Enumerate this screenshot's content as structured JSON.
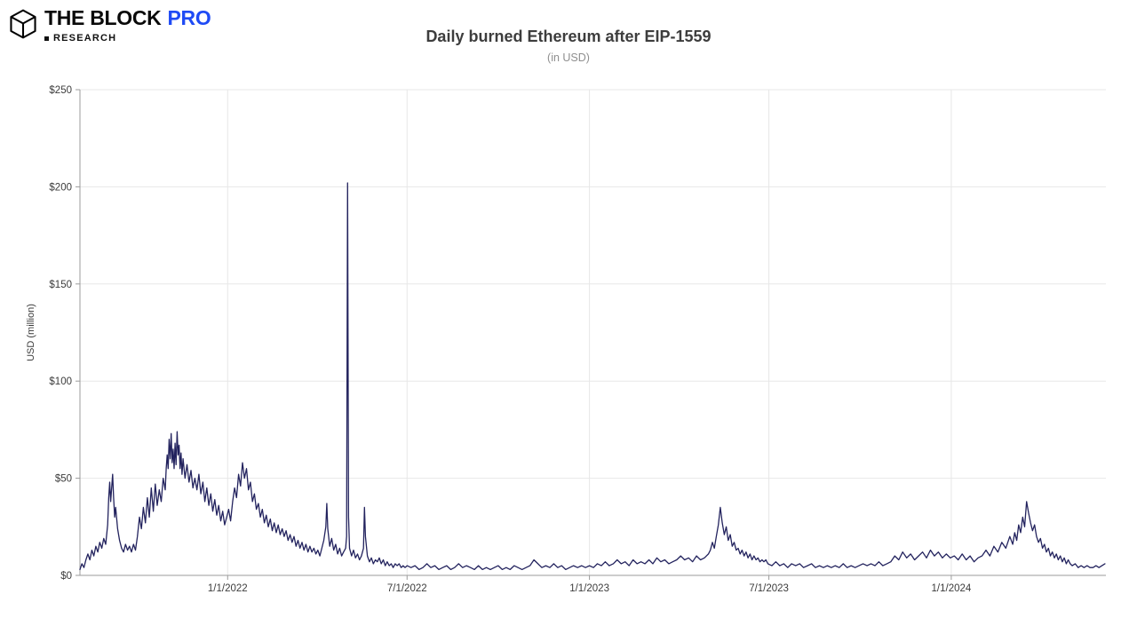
{
  "logo": {
    "brand": "THE BLOCK",
    "pro": "PRO",
    "research": "RESEARCH"
  },
  "header": {
    "title": "Daily burned Ethereum after EIP-1559",
    "subtitle": "(in USD)"
  },
  "chart_data": {
    "type": "line",
    "title": "Daily burned Ethereum after EIP-1559",
    "subtitle": "(in USD)",
    "xlabel": "",
    "ylabel": "USD (million)",
    "ylim": [
      0,
      250
    ],
    "x_domain_days": [
      0,
      1035
    ],
    "grid": true,
    "legend": false,
    "line_color": "#23235e",
    "grid_color": "#e7e7e7",
    "axis_color": "#9b9b9b",
    "text_color": "#3c3c3c",
    "y_ticks": {
      "values": [
        0,
        50,
        100,
        150,
        200,
        250
      ],
      "labels": [
        "$0",
        "$50",
        "$100",
        "$150",
        "$200",
        "$250"
      ]
    },
    "x_ticks": [
      {
        "day": 149,
        "label": "1/1/2022"
      },
      {
        "day": 330,
        "label": "7/1/2022"
      },
      {
        "day": 514,
        "label": "1/1/2023"
      },
      {
        "day": 695,
        "label": "7/1/2023"
      },
      {
        "day": 879,
        "label": "1/1/2024"
      }
    ],
    "points": [
      [
        0,
        3
      ],
      [
        2,
        6
      ],
      [
        4,
        4
      ],
      [
        6,
        8
      ],
      [
        8,
        11
      ],
      [
        10,
        8
      ],
      [
        12,
        13
      ],
      [
        14,
        10
      ],
      [
        16,
        15
      ],
      [
        18,
        12
      ],
      [
        20,
        17
      ],
      [
        22,
        14
      ],
      [
        24,
        19
      ],
      [
        26,
        16
      ],
      [
        28,
        26
      ],
      [
        29,
        40
      ],
      [
        30,
        48
      ],
      [
        31,
        38
      ],
      [
        32,
        45
      ],
      [
        33,
        52
      ],
      [
        34,
        40
      ],
      [
        35,
        30
      ],
      [
        36,
        35
      ],
      [
        38,
        24
      ],
      [
        40,
        18
      ],
      [
        42,
        14
      ],
      [
        44,
        12
      ],
      [
        46,
        16
      ],
      [
        48,
        13
      ],
      [
        50,
        15
      ],
      [
        52,
        12
      ],
      [
        54,
        16
      ],
      [
        56,
        13
      ],
      [
        58,
        20
      ],
      [
        60,
        30
      ],
      [
        62,
        24
      ],
      [
        64,
        35
      ],
      [
        66,
        27
      ],
      [
        68,
        40
      ],
      [
        70,
        30
      ],
      [
        72,
        45
      ],
      [
        74,
        33
      ],
      [
        76,
        47
      ],
      [
        78,
        36
      ],
      [
        80,
        44
      ],
      [
        82,
        38
      ],
      [
        84,
        50
      ],
      [
        86,
        44
      ],
      [
        87,
        55
      ],
      [
        88,
        62
      ],
      [
        89,
        55
      ],
      [
        90,
        70
      ],
      [
        91,
        60
      ],
      [
        92,
        73
      ],
      [
        93,
        58
      ],
      [
        94,
        65
      ],
      [
        95,
        55
      ],
      [
        96,
        68
      ],
      [
        97,
        57
      ],
      [
        98,
        74
      ],
      [
        99,
        62
      ],
      [
        100,
        67
      ],
      [
        101,
        55
      ],
      [
        102,
        63
      ],
      [
        103,
        52
      ],
      [
        104,
        60
      ],
      [
        106,
        50
      ],
      [
        108,
        57
      ],
      [
        110,
        48
      ],
      [
        112,
        54
      ],
      [
        114,
        45
      ],
      [
        116,
        50
      ],
      [
        118,
        44
      ],
      [
        120,
        52
      ],
      [
        122,
        42
      ],
      [
        124,
        48
      ],
      [
        126,
        38
      ],
      [
        128,
        45
      ],
      [
        130,
        36
      ],
      [
        132,
        42
      ],
      [
        134,
        33
      ],
      [
        136,
        39
      ],
      [
        138,
        31
      ],
      [
        140,
        36
      ],
      [
        142,
        28
      ],
      [
        144,
        33
      ],
      [
        146,
        26
      ],
      [
        148,
        30
      ],
      [
        150,
        34
      ],
      [
        152,
        28
      ],
      [
        154,
        38
      ],
      [
        156,
        45
      ],
      [
        158,
        40
      ],
      [
        160,
        52
      ],
      [
        162,
        46
      ],
      [
        164,
        58
      ],
      [
        166,
        50
      ],
      [
        168,
        55
      ],
      [
        170,
        44
      ],
      [
        172,
        48
      ],
      [
        174,
        38
      ],
      [
        176,
        42
      ],
      [
        178,
        34
      ],
      [
        180,
        37
      ],
      [
        182,
        30
      ],
      [
        184,
        34
      ],
      [
        186,
        27
      ],
      [
        188,
        31
      ],
      [
        190,
        25
      ],
      [
        192,
        29
      ],
      [
        194,
        23
      ],
      [
        196,
        27
      ],
      [
        198,
        22
      ],
      [
        200,
        26
      ],
      [
        202,
        21
      ],
      [
        204,
        24
      ],
      [
        206,
        20
      ],
      [
        208,
        23
      ],
      [
        210,
        18
      ],
      [
        212,
        21
      ],
      [
        214,
        17
      ],
      [
        216,
        20
      ],
      [
        218,
        15
      ],
      [
        220,
        18
      ],
      [
        222,
        14
      ],
      [
        224,
        17
      ],
      [
        226,
        13
      ],
      [
        228,
        16
      ],
      [
        230,
        12
      ],
      [
        232,
        15
      ],
      [
        234,
        12
      ],
      [
        236,
        14
      ],
      [
        238,
        11
      ],
      [
        240,
        13
      ],
      [
        242,
        10
      ],
      [
        244,
        14
      ],
      [
        246,
        18
      ],
      [
        248,
        25
      ],
      [
        249,
        37
      ],
      [
        250,
        24
      ],
      [
        252,
        15
      ],
      [
        254,
        19
      ],
      [
        256,
        13
      ],
      [
        258,
        16
      ],
      [
        260,
        11
      ],
      [
        262,
        14
      ],
      [
        264,
        10
      ],
      [
        266,
        12
      ],
      [
        268,
        14
      ],
      [
        269,
        20
      ],
      [
        270,
        202
      ],
      [
        271,
        30
      ],
      [
        272,
        14
      ],
      [
        274,
        10
      ],
      [
        276,
        13
      ],
      [
        278,
        9
      ],
      [
        280,
        11
      ],
      [
        282,
        8
      ],
      [
        284,
        10
      ],
      [
        286,
        14
      ],
      [
        287,
        35
      ],
      [
        288,
        20
      ],
      [
        290,
        10
      ],
      [
        292,
        7
      ],
      [
        294,
        9
      ],
      [
        296,
        6
      ],
      [
        298,
        8
      ],
      [
        300,
        7
      ],
      [
        302,
        9
      ],
      [
        304,
        6
      ],
      [
        306,
        8
      ],
      [
        308,
        5
      ],
      [
        310,
        7
      ],
      [
        312,
        5
      ],
      [
        314,
        6
      ],
      [
        316,
        4
      ],
      [
        318,
        6
      ],
      [
        320,
        5
      ],
      [
        322,
        6
      ],
      [
        324,
        4
      ],
      [
        326,
        5
      ],
      [
        328,
        4
      ],
      [
        330,
        5
      ],
      [
        334,
        4
      ],
      [
        338,
        5
      ],
      [
        342,
        3
      ],
      [
        346,
        4
      ],
      [
        350,
        6
      ],
      [
        354,
        4
      ],
      [
        358,
        5
      ],
      [
        362,
        3
      ],
      [
        366,
        4
      ],
      [
        370,
        5
      ],
      [
        374,
        3
      ],
      [
        378,
        4
      ],
      [
        382,
        6
      ],
      [
        386,
        4
      ],
      [
        390,
        5
      ],
      [
        394,
        4
      ],
      [
        398,
        3
      ],
      [
        402,
        5
      ],
      [
        406,
        3
      ],
      [
        410,
        4
      ],
      [
        414,
        3
      ],
      [
        418,
        4
      ],
      [
        422,
        5
      ],
      [
        426,
        3
      ],
      [
        430,
        4
      ],
      [
        434,
        3
      ],
      [
        438,
        5
      ],
      [
        442,
        4
      ],
      [
        446,
        3
      ],
      [
        450,
        4
      ],
      [
        454,
        5
      ],
      [
        458,
        8
      ],
      [
        462,
        6
      ],
      [
        466,
        4
      ],
      [
        470,
        5
      ],
      [
        474,
        4
      ],
      [
        478,
        6
      ],
      [
        482,
        4
      ],
      [
        486,
        5
      ],
      [
        490,
        3
      ],
      [
        494,
        4
      ],
      [
        498,
        5
      ],
      [
        502,
        4
      ],
      [
        506,
        5
      ],
      [
        510,
        4
      ],
      [
        514,
        5
      ],
      [
        518,
        4
      ],
      [
        522,
        6
      ],
      [
        526,
        5
      ],
      [
        530,
        7
      ],
      [
        534,
        5
      ],
      [
        538,
        6
      ],
      [
        542,
        8
      ],
      [
        546,
        6
      ],
      [
        550,
        7
      ],
      [
        554,
        5
      ],
      [
        558,
        8
      ],
      [
        562,
        6
      ],
      [
        566,
        7
      ],
      [
        570,
        6
      ],
      [
        574,
        8
      ],
      [
        578,
        6
      ],
      [
        582,
        9
      ],
      [
        586,
        7
      ],
      [
        590,
        8
      ],
      [
        594,
        6
      ],
      [
        598,
        7
      ],
      [
        602,
        8
      ],
      [
        606,
        10
      ],
      [
        610,
        8
      ],
      [
        614,
        9
      ],
      [
        618,
        7
      ],
      [
        622,
        10
      ],
      [
        626,
        8
      ],
      [
        630,
        9
      ],
      [
        634,
        11
      ],
      [
        636,
        13
      ],
      [
        638,
        17
      ],
      [
        640,
        14
      ],
      [
        642,
        20
      ],
      [
        644,
        26
      ],
      [
        646,
        35
      ],
      [
        648,
        27
      ],
      [
        650,
        21
      ],
      [
        652,
        25
      ],
      [
        654,
        18
      ],
      [
        656,
        21
      ],
      [
        658,
        15
      ],
      [
        660,
        17
      ],
      [
        662,
        13
      ],
      [
        664,
        14
      ],
      [
        666,
        11
      ],
      [
        668,
        13
      ],
      [
        670,
        10
      ],
      [
        672,
        12
      ],
      [
        674,
        9
      ],
      [
        676,
        11
      ],
      [
        678,
        8
      ],
      [
        680,
        10
      ],
      [
        682,
        8
      ],
      [
        684,
        9
      ],
      [
        686,
        7
      ],
      [
        688,
        8
      ],
      [
        690,
        7
      ],
      [
        692,
        8
      ],
      [
        694,
        6
      ],
      [
        698,
        5
      ],
      [
        702,
        7
      ],
      [
        706,
        5
      ],
      [
        710,
        6
      ],
      [
        714,
        4
      ],
      [
        718,
        6
      ],
      [
        722,
        5
      ],
      [
        726,
        6
      ],
      [
        730,
        4
      ],
      [
        734,
        5
      ],
      [
        738,
        6
      ],
      [
        742,
        4
      ],
      [
        746,
        5
      ],
      [
        750,
        4
      ],
      [
        754,
        5
      ],
      [
        758,
        4
      ],
      [
        762,
        5
      ],
      [
        766,
        4
      ],
      [
        770,
        6
      ],
      [
        774,
        4
      ],
      [
        778,
        5
      ],
      [
        782,
        4
      ],
      [
        786,
        5
      ],
      [
        790,
        6
      ],
      [
        794,
        5
      ],
      [
        798,
        6
      ],
      [
        802,
        5
      ],
      [
        806,
        7
      ],
      [
        810,
        5
      ],
      [
        814,
        6
      ],
      [
        818,
        7
      ],
      [
        822,
        10
      ],
      [
        826,
        8
      ],
      [
        830,
        12
      ],
      [
        834,
        9
      ],
      [
        838,
        11
      ],
      [
        842,
        8
      ],
      [
        846,
        10
      ],
      [
        850,
        12
      ],
      [
        854,
        9
      ],
      [
        858,
        13
      ],
      [
        862,
        10
      ],
      [
        866,
        12
      ],
      [
        870,
        9
      ],
      [
        874,
        11
      ],
      [
        878,
        9
      ],
      [
        882,
        10
      ],
      [
        886,
        8
      ],
      [
        890,
        11
      ],
      [
        894,
        8
      ],
      [
        898,
        10
      ],
      [
        902,
        7
      ],
      [
        906,
        9
      ],
      [
        910,
        10
      ],
      [
        914,
        13
      ],
      [
        918,
        10
      ],
      [
        922,
        15
      ],
      [
        926,
        12
      ],
      [
        930,
        17
      ],
      [
        934,
        14
      ],
      [
        938,
        20
      ],
      [
        941,
        16
      ],
      [
        943,
        22
      ],
      [
        945,
        18
      ],
      [
        947,
        26
      ],
      [
        949,
        22
      ],
      [
        951,
        30
      ],
      [
        953,
        25
      ],
      [
        955,
        38
      ],
      [
        957,
        32
      ],
      [
        959,
        27
      ],
      [
        961,
        23
      ],
      [
        963,
        26
      ],
      [
        965,
        20
      ],
      [
        967,
        17
      ],
      [
        969,
        19
      ],
      [
        971,
        14
      ],
      [
        973,
        16
      ],
      [
        975,
        12
      ],
      [
        977,
        14
      ],
      [
        979,
        10
      ],
      [
        981,
        12
      ],
      [
        983,
        9
      ],
      [
        985,
        11
      ],
      [
        987,
        8
      ],
      [
        989,
        10
      ],
      [
        991,
        7
      ],
      [
        993,
        9
      ],
      [
        995,
        6
      ],
      [
        997,
        8
      ],
      [
        999,
        6
      ],
      [
        1001,
        5
      ],
      [
        1004,
        6
      ],
      [
        1007,
        4
      ],
      [
        1010,
        5
      ],
      [
        1013,
        4
      ],
      [
        1016,
        5
      ],
      [
        1019,
        4
      ],
      [
        1022,
        4
      ],
      [
        1025,
        5
      ],
      [
        1028,
        4
      ],
      [
        1031,
        5
      ],
      [
        1034,
        6
      ]
    ]
  }
}
